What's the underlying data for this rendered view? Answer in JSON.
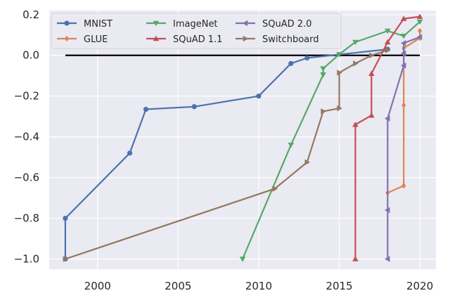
{
  "chart_data": {
    "type": "line",
    "title": "",
    "xlabel": "",
    "ylabel": "",
    "xlim": [
      1997.0,
      2021.0
    ],
    "ylim": [
      -1.05,
      0.22
    ],
    "xticks": [
      2000,
      2005,
      2010,
      2015,
      2020
    ],
    "xtick_labels": [
      "2000",
      "2005",
      "2010",
      "2015",
      "2020"
    ],
    "yticks": [
      -1.0,
      -0.8,
      -0.6,
      -0.4,
      -0.2,
      0.0,
      0.2
    ],
    "ytick_labels": [
      "−1.0",
      "−0.8",
      "−0.6",
      "−0.4",
      "−0.2",
      "0.0",
      "0.2"
    ],
    "grid": true,
    "legend_position": "top-left",
    "reference_line": {
      "y": 0.0,
      "x_start": 1998,
      "x_end": 2020,
      "color": "#000000"
    },
    "series": [
      {
        "name": "MNIST",
        "color": "#4c72b0",
        "marker": "circle",
        "x": [
          1998,
          1998,
          2002,
          2003,
          2006,
          2010,
          2012,
          2013,
          2018
        ],
        "y": [
          -1.0,
          -0.8,
          -0.48,
          -0.265,
          -0.252,
          -0.2,
          -0.04,
          -0.013,
          0.03
        ]
      },
      {
        "name": "GLUE",
        "color": "#dd8452",
        "marker": "diamond",
        "x": [
          2018,
          2019,
          2019,
          2019,
          2020,
          2020
        ],
        "y": [
          -0.675,
          -0.64,
          -0.245,
          0.035,
          0.085,
          0.12
        ]
      },
      {
        "name": "ImageNet",
        "color": "#55a868",
        "marker": "triangle-down",
        "x": [
          2009,
          2012,
          2014,
          2014,
          2015,
          2016,
          2018,
          2019,
          2020
        ],
        "y": [
          -1.0,
          -0.44,
          -0.095,
          -0.065,
          0.005,
          0.065,
          0.12,
          0.095,
          0.165
        ]
      },
      {
        "name": "SQuAD 1.1",
        "color": "#c44e52",
        "marker": "triangle-up",
        "x": [
          2016,
          2016,
          2017,
          2017,
          2018,
          2019,
          2020
        ],
        "y": [
          -1.0,
          -0.34,
          -0.295,
          -0.09,
          0.065,
          0.18,
          0.19
        ]
      },
      {
        "name": "SQuAD 2.0",
        "color": "#8172b3",
        "marker": "triangle-left",
        "x": [
          2018,
          2018,
          2018,
          2019,
          2019,
          2019,
          2020
        ],
        "y": [
          -1.0,
          -0.76,
          -0.31,
          -0.05,
          0.01,
          0.06,
          0.09
        ]
      },
      {
        "name": "Switchboard",
        "color": "#937860",
        "marker": "triangle-right",
        "x": [
          1998,
          2011,
          2013,
          2014,
          2015,
          2015,
          2016,
          2017,
          2018
        ],
        "y": [
          -1.0,
          -0.655,
          -0.525,
          -0.275,
          -0.26,
          -0.085,
          -0.04,
          0.0,
          0.025
        ]
      }
    ]
  }
}
